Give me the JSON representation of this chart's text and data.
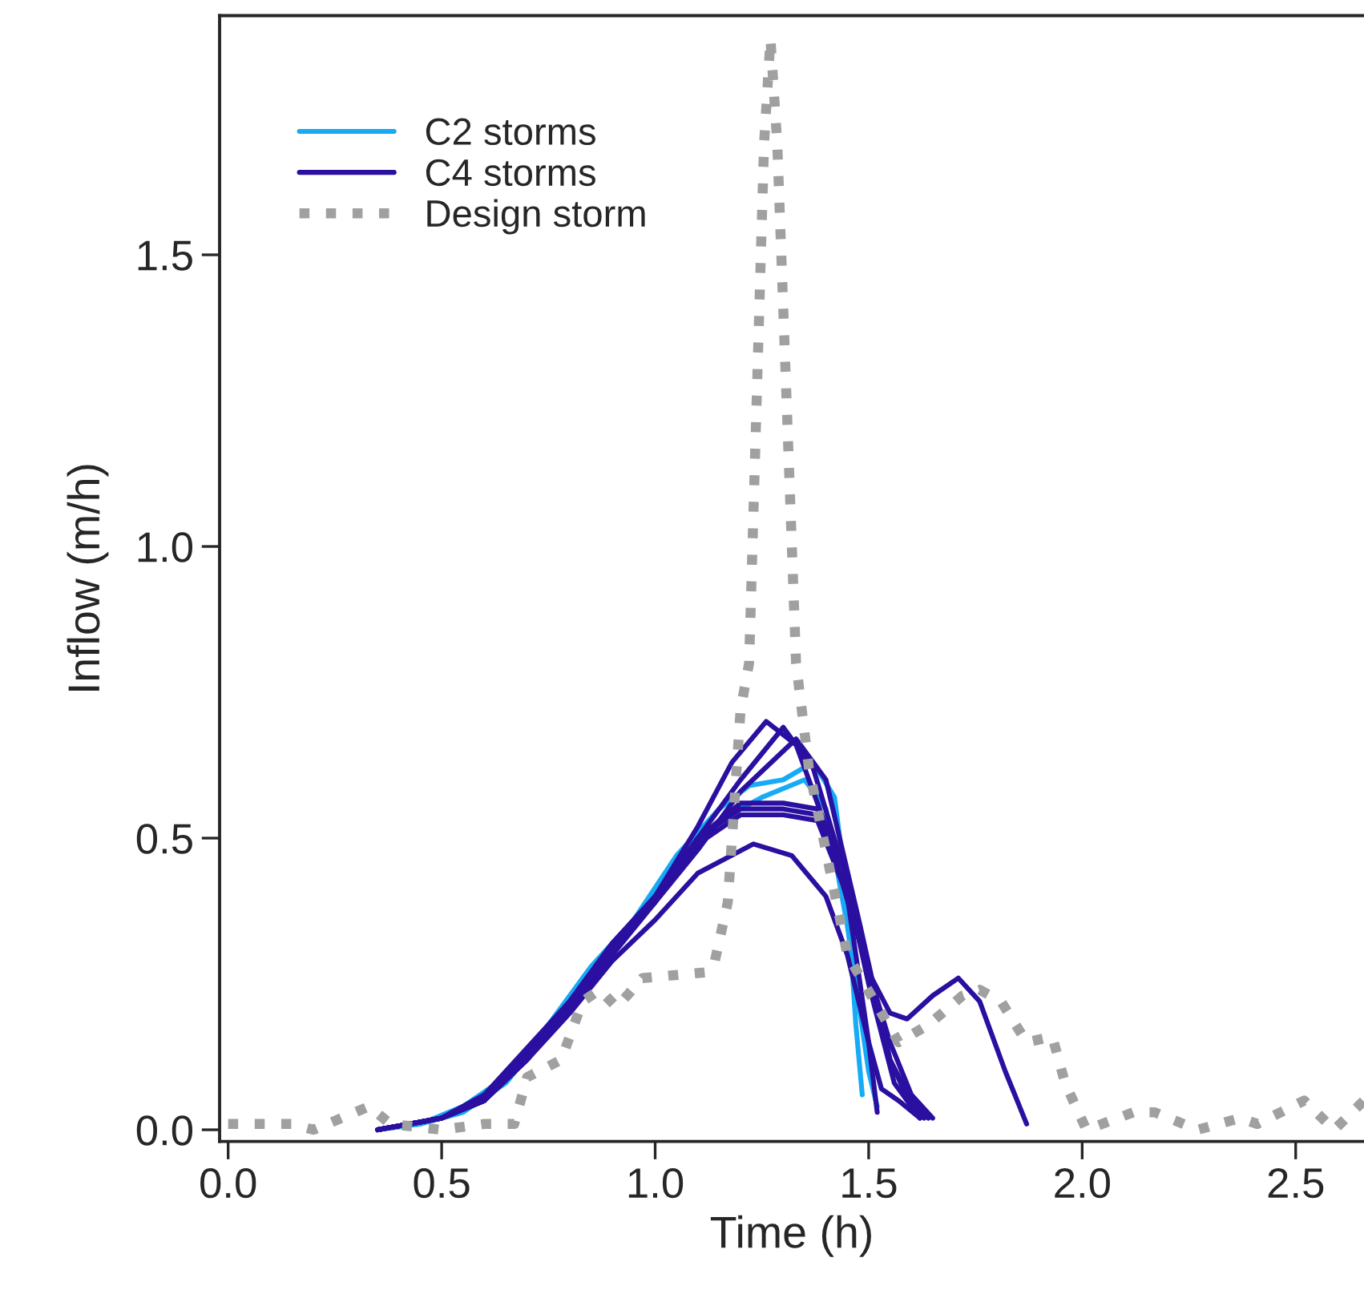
{
  "chart_data": {
    "type": "line",
    "xlabel": "Time (h)",
    "ylabel": "Inflow (m/h)",
    "xlim": [
      -0.02,
      2.66
    ],
    "ylim": [
      -0.02,
      1.91
    ],
    "xticks": [
      {
        "value": 0,
        "label": "0.0"
      },
      0.5,
      {
        "value": 1,
        "label": "1.0"
      },
      1.5,
      {
        "value": 2,
        "label": "2.0"
      },
      2.5
    ],
    "yticks": [
      {
        "value": 0,
        "label": "0.0"
      },
      0.5,
      {
        "value": 1,
        "label": "1.0"
      },
      1.5
    ],
    "grid": false,
    "legend": "top left",
    "marker": "none",
    "series": [
      {
        "name": "C2 storms",
        "color": "#17aaf5",
        "line_style": "solid",
        "x": [
          0.35,
          0.45,
          0.55,
          0.65,
          0.75,
          0.85,
          0.95,
          1.05,
          1.15,
          1.22,
          1.3,
          1.37,
          1.42,
          1.45,
          1.47,
          1.485
        ],
        "values": [
          0.0,
          0.01,
          0.04,
          0.09,
          0.18,
          0.28,
          0.36,
          0.47,
          0.55,
          0.59,
          0.6,
          0.63,
          0.57,
          0.4,
          0.18,
          0.06
        ]
      },
      {
        "color": "#17aaf5",
        "line_style": "solid",
        "x": [
          0.35,
          0.45,
          0.55,
          0.65,
          0.75,
          0.85,
          0.95,
          1.05,
          1.15,
          1.25,
          1.35,
          1.4,
          1.45,
          1.5,
          1.52
        ],
        "values": [
          0.0,
          0.01,
          0.03,
          0.08,
          0.17,
          0.27,
          0.36,
          0.46,
          0.53,
          0.57,
          0.6,
          0.55,
          0.35,
          0.1,
          0.04
        ]
      },
      {
        "name": "C4 storms",
        "color": "#2a0fa0",
        "line_style": "solid",
        "x": [
          0.35,
          0.5,
          0.6,
          0.7,
          0.8,
          0.9,
          1.0,
          1.1,
          1.18,
          1.26,
          1.33,
          1.4,
          1.48,
          1.55,
          1.6,
          1.65
        ],
        "values": [
          0.0,
          0.02,
          0.06,
          0.14,
          0.22,
          0.32,
          0.4,
          0.52,
          0.63,
          0.7,
          0.66,
          0.52,
          0.32,
          0.15,
          0.06,
          0.02
        ]
      },
      {
        "color": "#2a0fa0",
        "line_style": "solid",
        "x": [
          0.35,
          0.5,
          0.6,
          0.7,
          0.8,
          0.9,
          1.0,
          1.1,
          1.2,
          1.3,
          1.37,
          1.44,
          1.5,
          1.56,
          1.62
        ],
        "values": [
          0.0,
          0.02,
          0.05,
          0.13,
          0.22,
          0.31,
          0.4,
          0.5,
          0.6,
          0.69,
          0.62,
          0.45,
          0.25,
          0.08,
          0.02
        ]
      },
      {
        "color": "#2a0fa0",
        "line_style": "solid",
        "x": [
          0.35,
          0.5,
          0.6,
          0.7,
          0.8,
          0.9,
          1.0,
          1.1,
          1.2,
          1.33,
          1.4,
          1.48,
          1.55,
          1.6,
          1.63
        ],
        "values": [
          0.0,
          0.02,
          0.05,
          0.12,
          0.21,
          0.3,
          0.39,
          0.48,
          0.58,
          0.67,
          0.6,
          0.35,
          0.12,
          0.04,
          0.02
        ]
      },
      {
        "color": "#2a0fa0",
        "line_style": "solid",
        "x": [
          0.35,
          0.5,
          0.6,
          0.7,
          0.8,
          0.9,
          1.0,
          1.1,
          1.2,
          1.3,
          1.38,
          1.44,
          1.5,
          1.55,
          1.6,
          1.64
        ],
        "values": [
          0.0,
          0.02,
          0.05,
          0.13,
          0.21,
          0.31,
          0.39,
          0.5,
          0.55,
          0.55,
          0.54,
          0.45,
          0.28,
          0.12,
          0.05,
          0.02
        ]
      },
      {
        "color": "#2a0fa0",
        "line_style": "solid",
        "x": [
          0.35,
          0.5,
          0.6,
          0.7,
          0.8,
          0.9,
          1.0,
          1.1,
          1.2,
          1.3,
          1.38,
          1.44,
          1.5,
          1.55,
          1.59,
          1.65,
          1.71,
          1.76,
          1.82,
          1.87
        ],
        "values": [
          0.0,
          0.02,
          0.06,
          0.13,
          0.22,
          0.32,
          0.4,
          0.49,
          0.54,
          0.54,
          0.53,
          0.42,
          0.27,
          0.2,
          0.19,
          0.23,
          0.26,
          0.22,
          0.1,
          0.01
        ]
      },
      {
        "color": "#2a0fa0",
        "line_style": "solid",
        "x": [
          0.35,
          0.5,
          0.6,
          0.7,
          0.8,
          0.9,
          1.0,
          1.1,
          1.23,
          1.32,
          1.4,
          1.45,
          1.5,
          1.53,
          1.57,
          1.62
        ],
        "values": [
          0.0,
          0.02,
          0.05,
          0.12,
          0.2,
          0.29,
          0.36,
          0.44,
          0.49,
          0.47,
          0.4,
          0.3,
          0.15,
          0.07,
          0.05,
          0.02
        ]
      },
      {
        "color": "#2a0fa0",
        "line_style": "solid",
        "x": [
          0.35,
          0.5,
          0.6,
          0.7,
          0.8,
          0.9,
          1.0,
          1.1,
          1.2,
          1.3,
          1.38,
          1.45,
          1.5,
          1.52
        ],
        "values": [
          0.0,
          0.02,
          0.05,
          0.13,
          0.21,
          0.31,
          0.4,
          0.5,
          0.56,
          0.56,
          0.55,
          0.4,
          0.15,
          0.03
        ]
      },
      {
        "name": "Design storm",
        "color": "#a0a0a0",
        "line_style": "dotted",
        "x": [
          0.0,
          0.15,
          0.2,
          0.33,
          0.38,
          0.5,
          0.6,
          0.67,
          0.7,
          0.78,
          0.83,
          0.87,
          0.91,
          0.97,
          1.12,
          1.14,
          1.17,
          1.2,
          1.22,
          1.255,
          1.27,
          1.286,
          1.33,
          1.36,
          1.45,
          1.57,
          1.64,
          1.72,
          1.76,
          1.81,
          1.87,
          1.93,
          1.96,
          2.01,
          2.12,
          2.17,
          2.27,
          2.37,
          2.41,
          2.52,
          2.59,
          2.66
        ],
        "values": [
          0.01,
          0.01,
          0.0,
          0.04,
          0.01,
          0.0,
          0.01,
          0.01,
          0.09,
          0.12,
          0.22,
          0.24,
          0.21,
          0.26,
          0.27,
          0.29,
          0.39,
          0.72,
          0.8,
          1.69,
          1.87,
          1.69,
          0.8,
          0.62,
          0.3,
          0.15,
          0.18,
          0.23,
          0.24,
          0.22,
          0.15,
          0.16,
          0.08,
          0.0,
          0.03,
          0.03,
          0.0,
          0.02,
          0.01,
          0.05,
          0.0,
          0.05
        ]
      }
    ]
  }
}
